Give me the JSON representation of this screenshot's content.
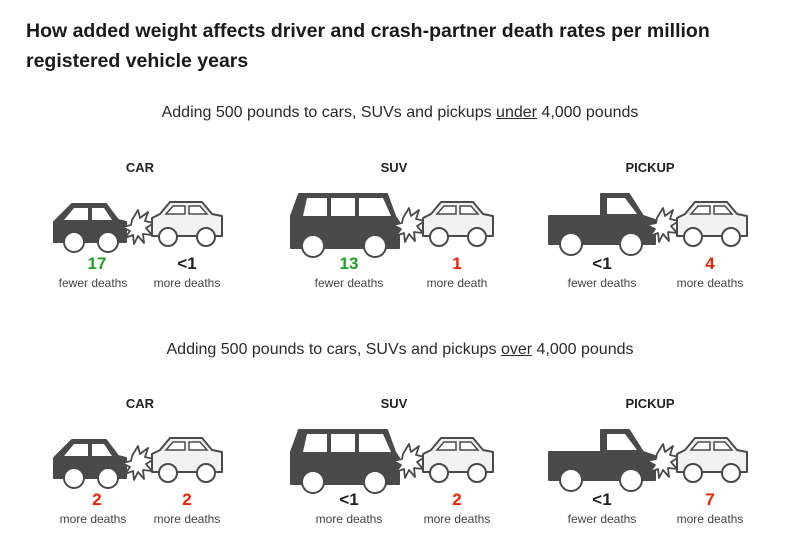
{
  "title": "How added weight affects driver and crash-partner death rates per million registered vehicle years",
  "colors": {
    "green": "#22a022",
    "red": "#ee2200",
    "black": "#222222"
  },
  "sections": [
    {
      "heading_pre": "Adding 500 pounds to cars, SUVs and pickups ",
      "heading_emph": "under",
      "heading_post": " 4,000 pounds",
      "panels": [
        {
          "vehicle": "CAR",
          "type": "car",
          "driver_value": "17",
          "driver_label": "fewer deaths",
          "driver_color": "#22a022",
          "partner_value": "<1",
          "partner_label": "more deaths",
          "partner_color": "#222222"
        },
        {
          "vehicle": "SUV",
          "type": "suv",
          "driver_value": "13",
          "driver_label": "fewer deaths",
          "driver_color": "#22a022",
          "partner_value": "1",
          "partner_label": "more death",
          "partner_color": "#ee2200"
        },
        {
          "vehicle": "PICKUP",
          "type": "pickup",
          "driver_value": "<1",
          "driver_label": "fewer deaths",
          "driver_color": "#222222",
          "partner_value": "4",
          "partner_label": "more deaths",
          "partner_color": "#ee2200"
        }
      ]
    },
    {
      "heading_pre": "Adding 500 pounds to cars, SUVs and pickups ",
      "heading_emph": "over",
      "heading_post": " 4,000 pounds",
      "panels": [
        {
          "vehicle": "CAR",
          "type": "car",
          "driver_value": "2",
          "driver_label": "more deaths",
          "driver_color": "#ee2200",
          "partner_value": "2",
          "partner_label": "more deaths",
          "partner_color": "#ee2200"
        },
        {
          "vehicle": "SUV",
          "type": "suv",
          "driver_value": "<1",
          "driver_label": "more deaths",
          "driver_color": "#222222",
          "partner_value": "2",
          "partner_label": "more deaths",
          "partner_color": "#ee2200"
        },
        {
          "vehicle": "PICKUP",
          "type": "pickup",
          "driver_value": "<1",
          "driver_label": "fewer deaths",
          "driver_color": "#222222",
          "partner_value": "7",
          "partner_label": "more deaths",
          "partner_color": "#ee2200"
        }
      ]
    }
  ]
}
